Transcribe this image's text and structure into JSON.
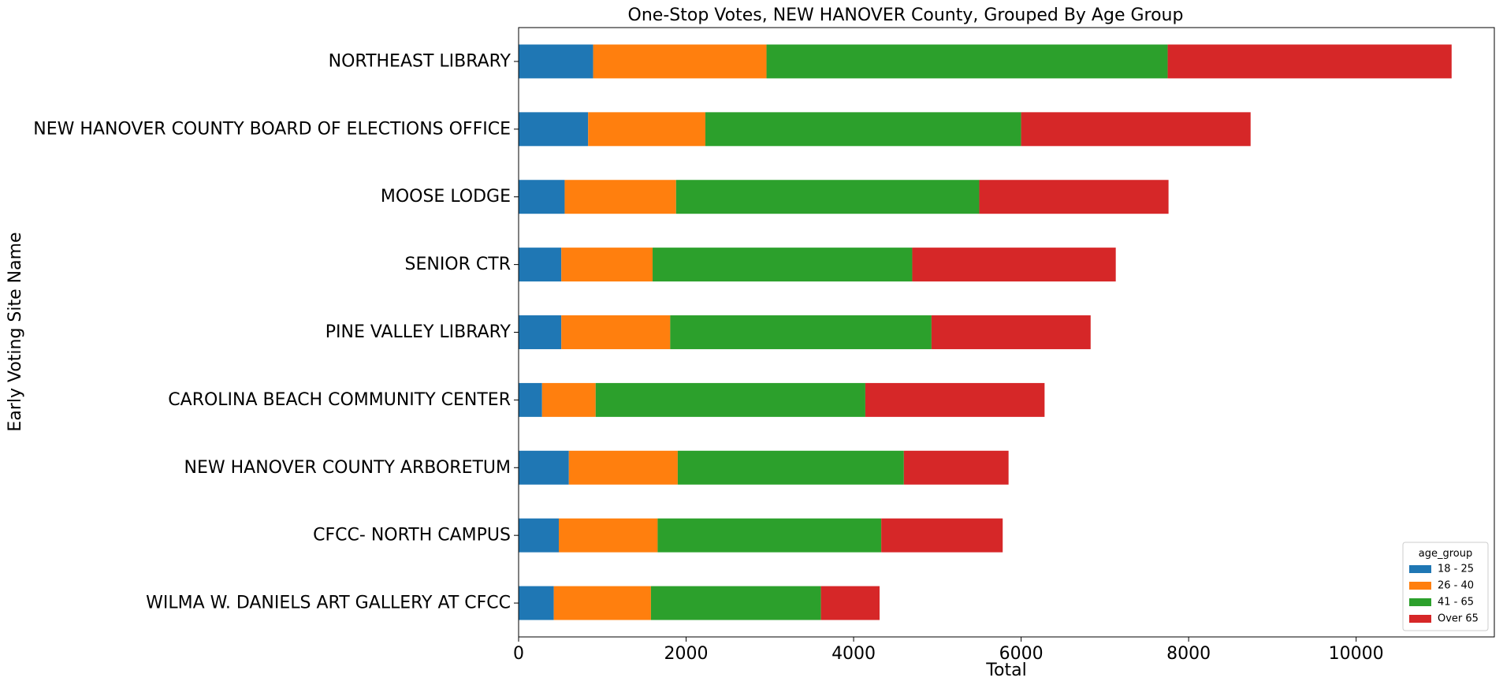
{
  "chart_data": {
    "type": "bar",
    "orientation": "horizontal",
    "stacked": true,
    "title": "One-Stop Votes, NEW HANOVER County, Grouped By Age Group",
    "xlabel": "Total",
    "ylabel": "Early Voting Site Name",
    "xlim": [
      0,
      11650
    ],
    "xticks": [
      0,
      2000,
      4000,
      6000,
      8000,
      10000
    ],
    "legend_title": "age_group",
    "legend_position": "lower-right",
    "categories": [
      "NORTHEAST LIBRARY",
      "NEW HANOVER COUNTY BOARD OF ELECTIONS OFFICE",
      "MOOSE LODGE",
      "SENIOR CTR",
      "PINE VALLEY LIBRARY",
      "CAROLINA BEACH COMMUNITY CENTER",
      "NEW HANOVER COUNTY ARBORETUM",
      "CFCC- NORTH CAMPUS",
      "WILMA W. DANIELS ART GALLERY AT CFCC"
    ],
    "series": [
      {
        "name": "18 - 25",
        "color": "#1f77b4",
        "values": [
          890,
          830,
          550,
          510,
          510,
          280,
          600,
          480,
          420
        ]
      },
      {
        "name": "26 - 40",
        "color": "#ff7f0e",
        "values": [
          2070,
          1400,
          1330,
          1090,
          1300,
          640,
          1300,
          1180,
          1160
        ]
      },
      {
        "name": "41 - 65",
        "color": "#2ca02c",
        "values": [
          4790,
          3770,
          3620,
          3100,
          3120,
          3220,
          2700,
          2670,
          2030
        ]
      },
      {
        "name": "Over 65",
        "color": "#d62728",
        "values": [
          3390,
          2740,
          2260,
          2430,
          1900,
          2140,
          1250,
          1450,
          700
        ]
      }
    ]
  }
}
